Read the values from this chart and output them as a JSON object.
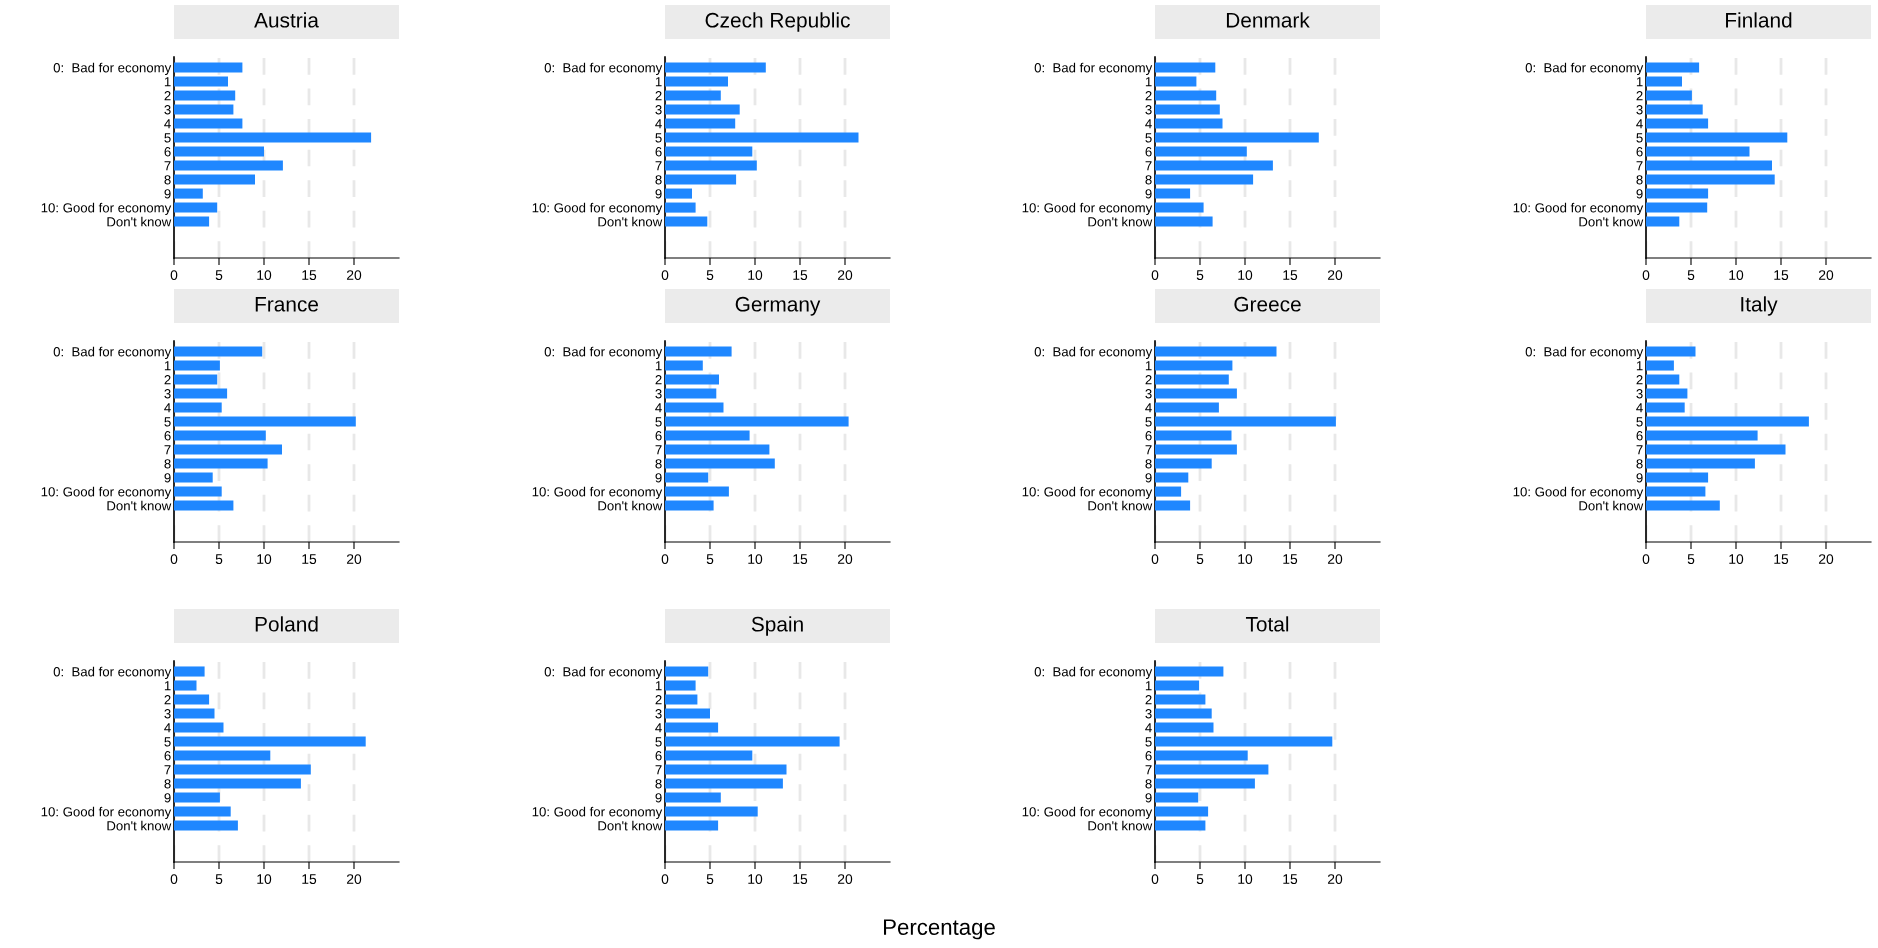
{
  "chart_data": [
    {
      "type": "bar",
      "orientation": "horizontal",
      "title": "Austria",
      "categories": [
        "0:  Bad for economy",
        "1",
        "2",
        "3",
        "4",
        "5",
        "6",
        "7",
        "8",
        "9",
        "10: Good for economy",
        "Don't know"
      ],
      "values": [
        7.6,
        6.0,
        6.8,
        6.6,
        7.6,
        21.9,
        10.0,
        12.1,
        9.0,
        3.2,
        4.8,
        3.9
      ],
      "color": "#1f87ff",
      "xlim": [
        0,
        25
      ],
      "xticks": [
        0,
        5,
        10,
        15,
        20
      ],
      "grid": "x"
    },
    {
      "type": "bar",
      "orientation": "horizontal",
      "title": "Czech Republic",
      "categories": [
        "0:  Bad for economy",
        "1",
        "2",
        "3",
        "4",
        "5",
        "6",
        "7",
        "8",
        "9",
        "10: Good for economy",
        "Don't know"
      ],
      "values": [
        11.2,
        7.0,
        6.2,
        8.3,
        7.8,
        21.5,
        9.7,
        10.2,
        7.9,
        3.0,
        3.4,
        4.7
      ],
      "color": "#1f87ff",
      "xlim": [
        0,
        25
      ],
      "xticks": [
        0,
        5,
        10,
        15,
        20
      ],
      "grid": "x"
    },
    {
      "type": "bar",
      "orientation": "horizontal",
      "title": "Denmark",
      "categories": [
        "0:  Bad for economy",
        "1",
        "2",
        "3",
        "4",
        "5",
        "6",
        "7",
        "8",
        "9",
        "10: Good for economy",
        "Don't know"
      ],
      "values": [
        6.7,
        4.6,
        6.8,
        7.2,
        7.5,
        18.2,
        10.2,
        13.1,
        10.9,
        3.9,
        5.4,
        6.4
      ],
      "color": "#1f87ff",
      "xlim": [
        0,
        25
      ],
      "xticks": [
        0,
        5,
        10,
        15,
        20
      ],
      "grid": "x"
    },
    {
      "type": "bar",
      "orientation": "horizontal",
      "title": "Finland",
      "categories": [
        "0:  Bad for economy",
        "1",
        "2",
        "3",
        "4",
        "5",
        "6",
        "7",
        "8",
        "9",
        "10: Good for economy",
        "Don't know"
      ],
      "values": [
        5.9,
        4.0,
        5.1,
        6.3,
        6.9,
        15.7,
        11.5,
        14.0,
        14.3,
        6.9,
        6.8,
        3.7
      ],
      "color": "#1f87ff",
      "xlim": [
        0,
        25
      ],
      "xticks": [
        0,
        5,
        10,
        15,
        20
      ],
      "grid": "x"
    },
    {
      "type": "bar",
      "orientation": "horizontal",
      "title": "France",
      "categories": [
        "0:  Bad for economy",
        "1",
        "2",
        "3",
        "4",
        "5",
        "6",
        "7",
        "8",
        "9",
        "10: Good for economy",
        "Don't know"
      ],
      "values": [
        9.8,
        5.1,
        4.8,
        5.9,
        5.3,
        20.2,
        10.2,
        12.0,
        10.4,
        4.3,
        5.3,
        6.6
      ],
      "color": "#1f87ff",
      "xlim": [
        0,
        25
      ],
      "xticks": [
        0,
        5,
        10,
        15,
        20
      ],
      "grid": "x"
    },
    {
      "type": "bar",
      "orientation": "horizontal",
      "title": "Germany",
      "categories": [
        "0:  Bad for economy",
        "1",
        "2",
        "3",
        "4",
        "5",
        "6",
        "7",
        "8",
        "9",
        "10: Good for economy",
        "Don't know"
      ],
      "values": [
        7.4,
        4.2,
        6.0,
        5.7,
        6.5,
        20.4,
        9.4,
        11.6,
        12.2,
        4.8,
        7.1,
        5.4
      ],
      "color": "#1f87ff",
      "xlim": [
        0,
        25
      ],
      "xticks": [
        0,
        5,
        10,
        15,
        20
      ],
      "grid": "x"
    },
    {
      "type": "bar",
      "orientation": "horizontal",
      "title": "Greece",
      "categories": [
        "0:  Bad for economy",
        "1",
        "2",
        "3",
        "4",
        "5",
        "6",
        "7",
        "8",
        "9",
        "10: Good for economy",
        "Don't know"
      ],
      "values": [
        13.5,
        8.6,
        8.2,
        9.1,
        7.1,
        20.1,
        8.5,
        9.1,
        6.3,
        3.7,
        2.9,
        3.9
      ],
      "color": "#1f87ff",
      "xlim": [
        0,
        25
      ],
      "xticks": [
        0,
        5,
        10,
        15,
        20
      ],
      "grid": "x"
    },
    {
      "type": "bar",
      "orientation": "horizontal",
      "title": "Italy",
      "categories": [
        "0:  Bad for economy",
        "1",
        "2",
        "3",
        "4",
        "5",
        "6",
        "7",
        "8",
        "9",
        "10: Good for economy",
        "Don't know"
      ],
      "values": [
        5.5,
        3.1,
        3.7,
        4.6,
        4.3,
        18.1,
        12.4,
        15.5,
        12.1,
        6.9,
        6.6,
        8.2
      ],
      "color": "#1f87ff",
      "xlim": [
        0,
        25
      ],
      "xticks": [
        0,
        5,
        10,
        15,
        20
      ],
      "grid": "x"
    },
    {
      "type": "bar",
      "orientation": "horizontal",
      "title": "Poland",
      "categories": [
        "0:  Bad for economy",
        "1",
        "2",
        "3",
        "4",
        "5",
        "6",
        "7",
        "8",
        "9",
        "10: Good for economy",
        "Don't know"
      ],
      "values": [
        3.4,
        2.5,
        3.9,
        4.5,
        5.5,
        21.3,
        10.7,
        15.2,
        14.1,
        5.1,
        6.3,
        7.1
      ],
      "color": "#1f87ff",
      "xlim": [
        0,
        25
      ],
      "xticks": [
        0,
        5,
        10,
        15,
        20
      ],
      "grid": "x"
    },
    {
      "type": "bar",
      "orientation": "horizontal",
      "title": "Spain",
      "xlabel": "Percentage",
      "categories": [
        "0:  Bad for economy",
        "1",
        "2",
        "3",
        "4",
        "5",
        "6",
        "7",
        "8",
        "9",
        "10: Good for economy",
        "Don't know"
      ],
      "values": [
        4.8,
        3.4,
        3.6,
        5.0,
        5.9,
        19.4,
        9.7,
        13.5,
        13.1,
        6.2,
        10.3,
        5.9
      ],
      "color": "#1f87ff",
      "xlim": [
        0,
        25
      ],
      "xticks": [
        0,
        5,
        10,
        15,
        20
      ],
      "grid": "x"
    },
    {
      "type": "bar",
      "orientation": "horizontal",
      "title": "Total",
      "categories": [
        "0:  Bad for economy",
        "1",
        "2",
        "3",
        "4",
        "5",
        "6",
        "7",
        "8",
        "9",
        "10: Good for economy",
        "Don't know"
      ],
      "values": [
        7.6,
        4.9,
        5.6,
        6.3,
        6.5,
        19.7,
        10.3,
        12.6,
        11.1,
        4.8,
        5.9,
        5.6
      ],
      "color": "#1f87ff",
      "xlim": [
        0,
        25
      ],
      "xticks": [
        0,
        5,
        10,
        15,
        20
      ],
      "grid": "x"
    }
  ]
}
